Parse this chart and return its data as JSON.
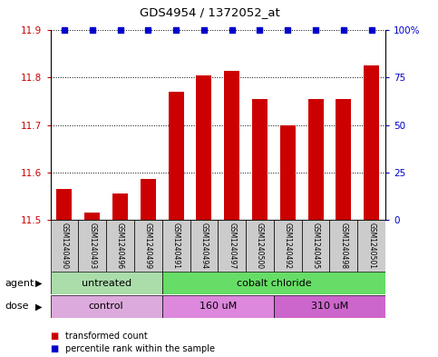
{
  "title": "GDS4954 / 1372052_at",
  "samples": [
    "GSM1240490",
    "GSM1240493",
    "GSM1240496",
    "GSM1240499",
    "GSM1240491",
    "GSM1240494",
    "GSM1240497",
    "GSM1240500",
    "GSM1240492",
    "GSM1240495",
    "GSM1240498",
    "GSM1240501"
  ],
  "bar_values": [
    11.565,
    11.515,
    11.555,
    11.585,
    11.77,
    11.805,
    11.815,
    11.755,
    11.7,
    11.755,
    11.755,
    11.825
  ],
  "percentile_values": [
    100,
    100,
    100,
    100,
    100,
    100,
    100,
    100,
    100,
    100,
    100,
    100
  ],
  "bar_color": "#cc0000",
  "dot_color": "#0000cc",
  "ylim_left": [
    11.5,
    11.9
  ],
  "ylim_right": [
    0,
    100
  ],
  "yticks_left": [
    11.5,
    11.6,
    11.7,
    11.8,
    11.9
  ],
  "ytick_labels_left": [
    "11.5",
    "11.6",
    "11.7",
    "11.8",
    "11.9"
  ],
  "yticks_right": [
    0,
    25,
    50,
    75,
    100
  ],
  "ytick_labels_right": [
    "0",
    "25",
    "50",
    "75",
    "100%"
  ],
  "gridlines": [
    11.6,
    11.7,
    11.8,
    11.9
  ],
  "agent_labels": [
    {
      "text": "untreated",
      "start": 0,
      "end": 4,
      "color": "#aaddaa"
    },
    {
      "text": "cobalt chloride",
      "start": 4,
      "end": 12,
      "color": "#66dd66"
    }
  ],
  "dose_labels": [
    {
      "text": "control",
      "start": 0,
      "end": 4,
      "color": "#ddaadd"
    },
    {
      "text": "160 uM",
      "start": 4,
      "end": 8,
      "color": "#dd88dd"
    },
    {
      "text": "310 uM",
      "start": 8,
      "end": 12,
      "color": "#cc66cc"
    }
  ],
  "legend_bar_label": "transformed count",
  "legend_dot_label": "percentile rank within the sample",
  "bar_width": 0.55,
  "background_color": "#ffffff",
  "label_row_agent": "agent",
  "label_row_dose": "dose",
  "sample_box_color": "#cccccc"
}
